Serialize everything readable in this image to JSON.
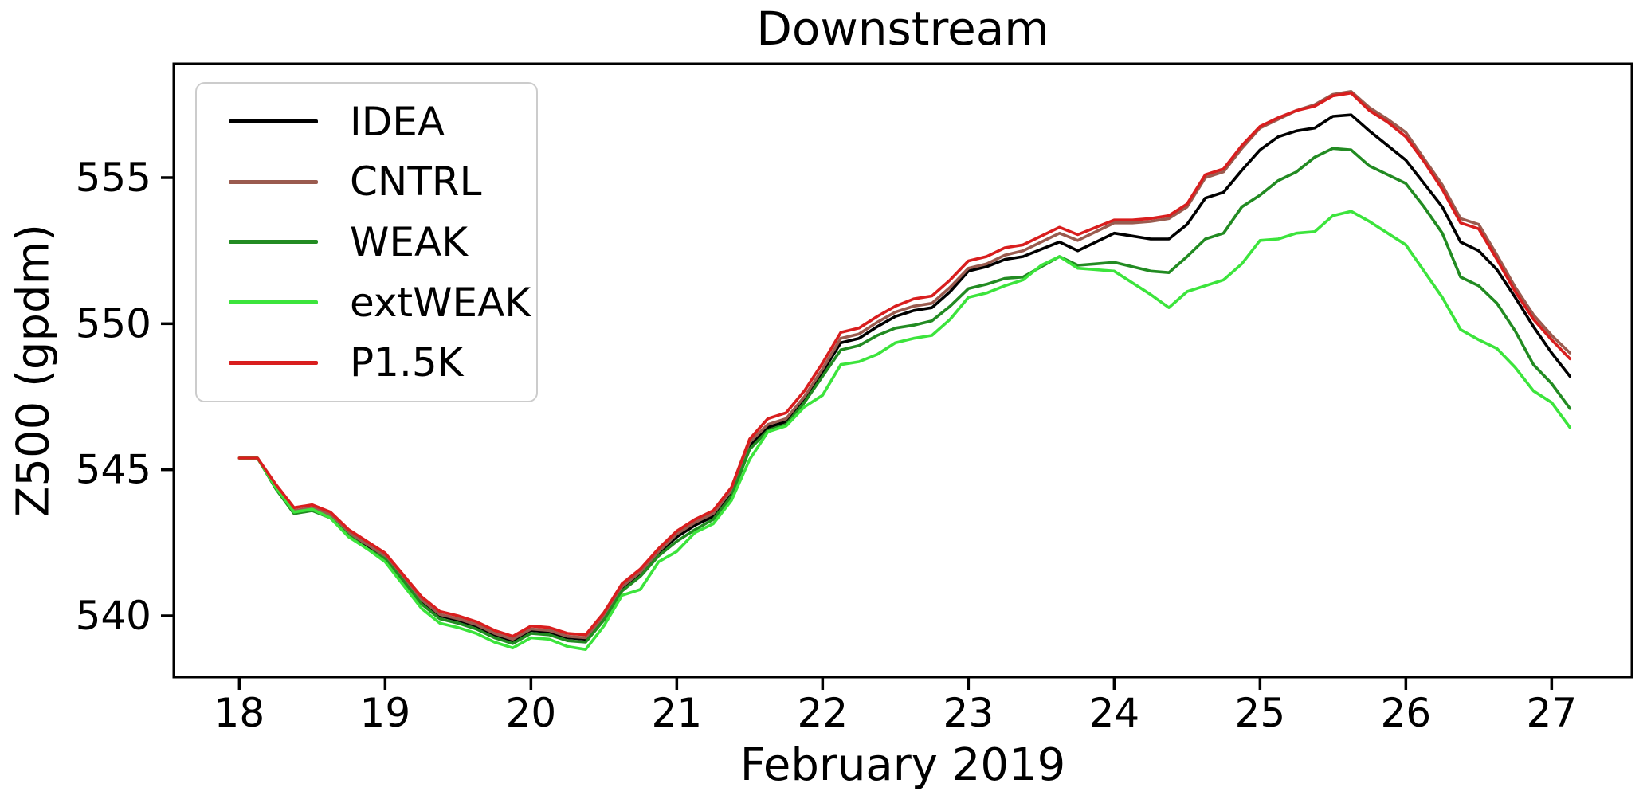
{
  "chart": {
    "title": "Downstream",
    "xlabel": "February 2019",
    "ylabel": "Z500 (gpdm)"
  },
  "legend": {
    "items": [
      {
        "label": "IDEA",
        "color": "#000000"
      },
      {
        "label": "CNTRL",
        "color": "#9a5b4f"
      },
      {
        "label": "WEAK",
        "color": "#228b22"
      },
      {
        "label": "extWEAK",
        "color": "#3ce43c"
      },
      {
        "label": "P1.5K",
        "color": "#d91e1e"
      }
    ]
  },
  "chart_data": {
    "type": "line",
    "title": "Downstream",
    "xlabel": "February 2019",
    "ylabel": "Z500 (gpdm)",
    "grid": false,
    "legend_position": "upper left",
    "xlim": [
      17.55,
      27.55
    ],
    "ylim": [
      537.9,
      558.9
    ],
    "x_ticks": [
      18,
      19,
      20,
      21,
      22,
      23,
      24,
      25,
      26,
      27
    ],
    "y_ticks": [
      540,
      545,
      550,
      555
    ],
    "x_start": 18.0,
    "x_step": 0.125,
    "series": [
      {
        "name": "IDEA",
        "color": "#000000",
        "values": [
          545.4,
          545.4,
          544.4,
          543.55,
          543.65,
          543.4,
          542.8,
          542.4,
          542.0,
          541.25,
          540.5,
          540.0,
          539.85,
          539.65,
          539.35,
          539.15,
          539.5,
          539.45,
          539.25,
          539.2,
          539.95,
          540.95,
          541.45,
          542.15,
          542.7,
          543.1,
          543.4,
          544.2,
          545.8,
          546.45,
          546.65,
          547.4,
          548.35,
          549.35,
          549.5,
          549.9,
          550.25,
          550.45,
          550.55,
          551.1,
          551.8,
          551.95,
          552.2,
          552.3,
          552.55,
          552.8,
          552.5,
          552.8,
          553.1,
          553.0,
          552.9,
          552.9,
          553.4,
          554.3,
          554.5,
          555.25,
          555.95,
          556.4,
          556.6,
          556.7,
          557.1,
          557.15,
          556.6,
          556.1,
          555.6,
          554.8,
          554.0,
          552.8,
          552.5,
          551.85,
          550.9,
          549.9,
          549.0,
          548.2
        ]
      },
      {
        "name": "CNTRL",
        "color": "#9a5b4f",
        "values": [
          545.4,
          545.4,
          544.45,
          543.6,
          543.7,
          543.45,
          542.85,
          542.45,
          542.05,
          541.3,
          540.55,
          540.05,
          539.9,
          539.7,
          539.4,
          539.2,
          539.55,
          539.5,
          539.3,
          539.25,
          540.0,
          541.0,
          541.5,
          542.2,
          542.8,
          543.2,
          543.5,
          544.3,
          545.95,
          546.55,
          546.75,
          547.5,
          548.45,
          549.5,
          549.65,
          550.05,
          550.4,
          550.6,
          550.7,
          551.25,
          551.9,
          552.05,
          552.35,
          552.5,
          552.8,
          553.1,
          552.85,
          553.15,
          553.45,
          553.45,
          553.5,
          553.6,
          554.0,
          555.0,
          555.2,
          556.0,
          556.7,
          557.0,
          557.3,
          557.5,
          557.85,
          557.95,
          557.4,
          557.0,
          556.55,
          555.65,
          554.75,
          553.6,
          553.4,
          552.35,
          551.25,
          550.3,
          549.6,
          549.0
        ]
      },
      {
        "name": "WEAK",
        "color": "#228b22",
        "values": [
          545.4,
          545.4,
          544.35,
          543.5,
          543.6,
          543.35,
          542.75,
          542.3,
          541.95,
          541.2,
          540.4,
          539.9,
          539.75,
          539.55,
          539.25,
          539.05,
          539.4,
          539.35,
          539.15,
          539.1,
          539.85,
          540.85,
          541.35,
          542.05,
          542.55,
          542.95,
          543.3,
          544.1,
          545.7,
          546.35,
          546.55,
          547.3,
          548.2,
          549.1,
          549.25,
          549.6,
          549.85,
          549.95,
          550.1,
          550.6,
          551.2,
          551.35,
          551.55,
          551.6,
          551.95,
          552.3,
          552.0,
          552.05,
          552.1,
          551.95,
          551.8,
          551.75,
          552.3,
          552.9,
          553.1,
          554.0,
          554.4,
          554.9,
          555.2,
          555.7,
          556.0,
          555.95,
          555.4,
          555.1,
          554.8,
          554.0,
          553.1,
          551.6,
          551.3,
          550.7,
          549.75,
          548.6,
          547.95,
          547.1
        ]
      },
      {
        "name": "extWEAK",
        "color": "#3ce43c",
        "values": [
          545.4,
          545.4,
          544.4,
          543.55,
          543.65,
          543.35,
          542.7,
          542.3,
          541.85,
          541.05,
          540.25,
          539.75,
          539.6,
          539.4,
          539.1,
          538.9,
          539.25,
          539.2,
          538.95,
          538.85,
          539.65,
          540.7,
          540.9,
          541.85,
          542.2,
          542.85,
          543.15,
          543.95,
          545.35,
          546.3,
          546.5,
          547.15,
          547.55,
          548.6,
          548.7,
          548.95,
          549.35,
          549.5,
          549.6,
          550.15,
          550.9,
          551.05,
          551.3,
          551.5,
          552.0,
          552.3,
          551.9,
          551.85,
          551.8,
          551.4,
          551.0,
          550.55,
          551.1,
          551.3,
          551.5,
          552.05,
          552.85,
          552.9,
          553.1,
          553.15,
          553.7,
          553.85,
          553.5,
          553.1,
          552.7,
          551.8,
          550.9,
          549.8,
          549.45,
          549.15,
          548.5,
          547.7,
          547.3,
          546.45
        ]
      },
      {
        "name": "P1.5K",
        "color": "#d91e1e",
        "values": [
          545.4,
          545.4,
          544.5,
          543.7,
          543.8,
          543.55,
          542.95,
          542.55,
          542.15,
          541.4,
          540.65,
          540.15,
          540.0,
          539.8,
          539.5,
          539.3,
          539.65,
          539.6,
          539.4,
          539.35,
          540.1,
          541.1,
          541.6,
          542.3,
          542.9,
          543.3,
          543.6,
          544.4,
          546.05,
          546.75,
          546.95,
          547.7,
          548.65,
          549.7,
          549.85,
          550.25,
          550.6,
          550.85,
          550.95,
          551.5,
          552.15,
          552.3,
          552.6,
          552.7,
          553.0,
          553.3,
          553.05,
          553.3,
          553.55,
          553.55,
          553.6,
          553.7,
          554.1,
          555.1,
          555.3,
          556.1,
          556.75,
          557.05,
          557.3,
          557.45,
          557.8,
          557.9,
          557.3,
          556.9,
          556.4,
          555.55,
          554.6,
          553.45,
          553.25,
          552.2,
          551.1,
          550.15,
          549.45,
          548.8
        ]
      }
    ]
  }
}
